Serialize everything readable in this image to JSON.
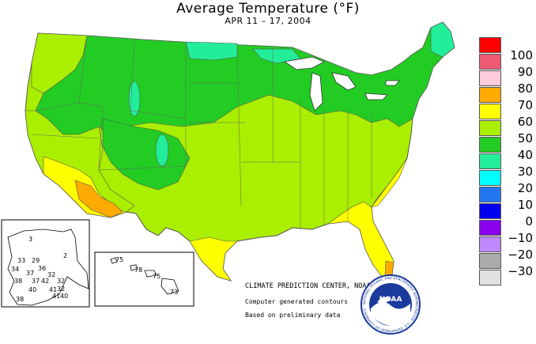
{
  "title": "Average Temperature (°F)",
  "subtitle": "APR 11 – 17, 2004",
  "legend": [
    {
      "label": "100",
      "color": "#ff0000"
    },
    {
      "label": "90",
      "color": "#ee5a74"
    },
    {
      "label": "80",
      "color": "#ffccdd"
    },
    {
      "label": "70",
      "color": "#ffaa00"
    },
    {
      "label": "60",
      "color": "#ffff00"
    },
    {
      "label": "50",
      "color": "#aaee00"
    },
    {
      "label": "40",
      "color": "#22cc22"
    },
    {
      "label": "30",
      "color": "#22ee99"
    },
    {
      "label": "20",
      "color": "#00ffff"
    },
    {
      "label": "10",
      "color": "#2277ee"
    },
    {
      "label": "0",
      "color": "#0000ee"
    },
    {
      "label": "−10",
      "color": "#8800ee"
    },
    {
      "label": "−20",
      "color": "#c089ff"
    },
    {
      "label": "−30",
      "color": "#aaaaaa"
    },
    {
      "label": "",
      "color": "#e2e2e2"
    }
  ],
  "alaska_values": [
    "3",
    "33",
    "29",
    "34",
    "37",
    "36",
    "32",
    "38",
    "37",
    "42",
    "32",
    "40",
    "41",
    "32",
    "38",
    "2",
    "41",
    "40"
  ],
  "hawaii_values": [
    "75",
    "78",
    "75",
    "73"
  ],
  "credits": {
    "center": "CLIMATE PREDICTION CENTER, NOAA",
    "line1": "Computer generated contours",
    "line2": "Based on preliminary data"
  },
  "logo": {
    "text": "NOAA",
    "ring": "NATIONAL OCEANIC AND ATMOSPHERIC ADMINISTRATION · U.S. DEPARTMENT OF COMMERCE"
  }
}
